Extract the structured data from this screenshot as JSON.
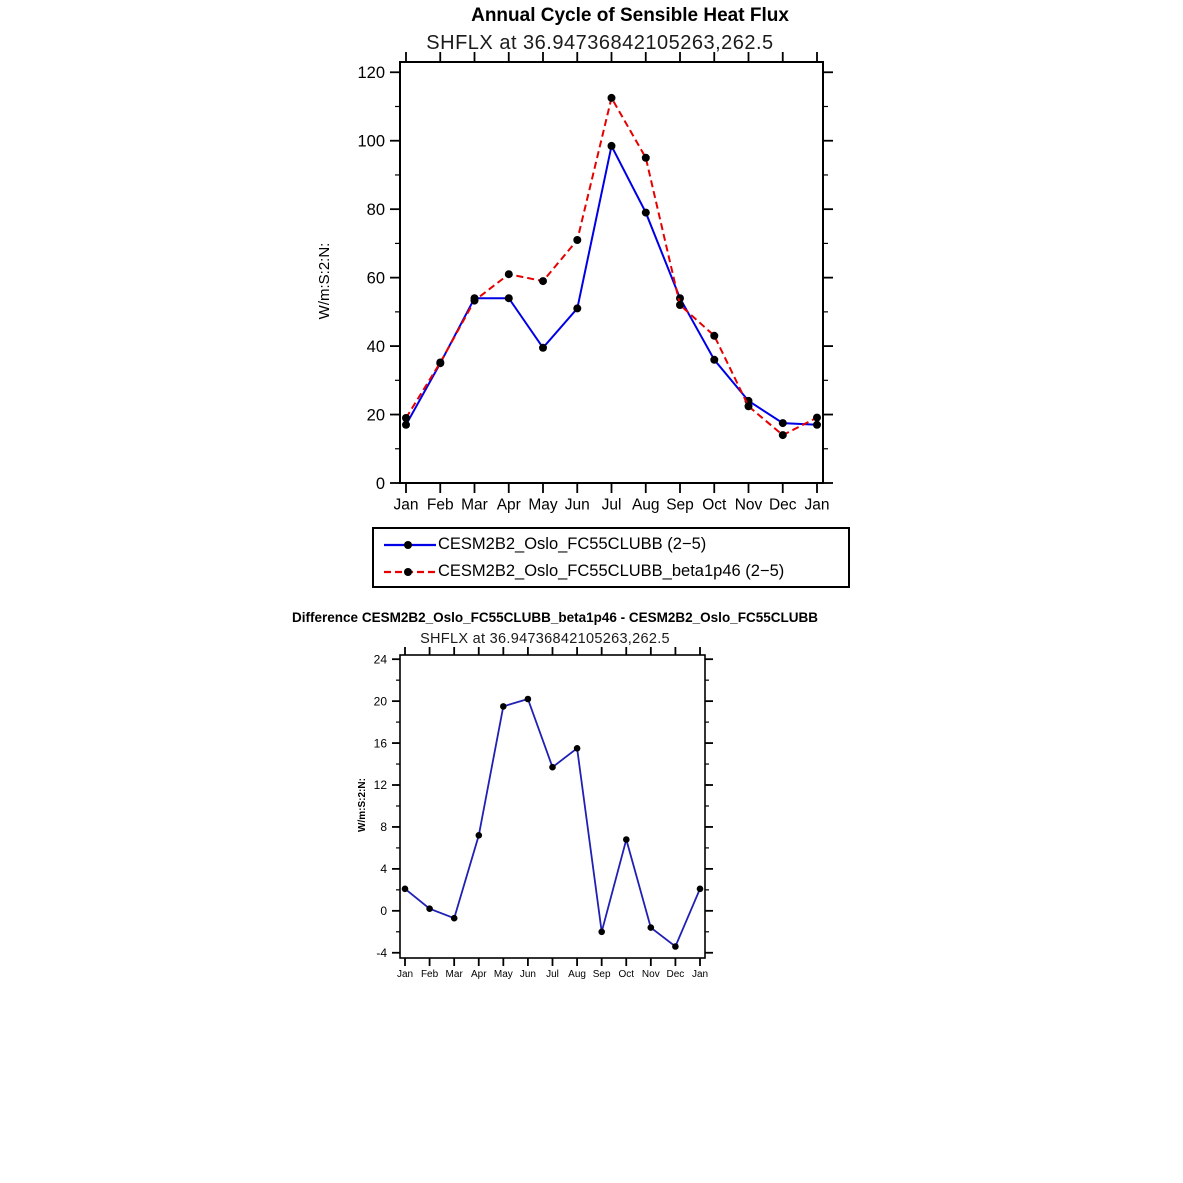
{
  "page": {
    "background": "#ffffff"
  },
  "chart_data": [
    {
      "type": "line",
      "title": "Annual Cycle of Sensible Heat Flux",
      "subtitle": "SHFLX at 36.94736842105263,262.5",
      "ylabel": "W/m:S:2:N:",
      "xlabel": "",
      "grid": false,
      "legend_position": "below",
      "categories": [
        "Jan",
        "Feb",
        "Mar",
        "Apr",
        "May",
        "Jun",
        "Jul",
        "Aug",
        "Sep",
        "Oct",
        "Nov",
        "Dec",
        "Jan"
      ],
      "ylim": [
        0,
        123
      ],
      "yticks": [
        0,
        20,
        40,
        60,
        80,
        100,
        120
      ],
      "yminor_step": 10,
      "series": [
        {
          "name": "CESM2B2_Oslo_FC55CLUBB (2−5)",
          "style": "solid",
          "color": "#0000e6",
          "marker_color": "#000000",
          "values": [
            17,
            35,
            54,
            54,
            39.5,
            51,
            98.5,
            79,
            54,
            36,
            24,
            17.5,
            17
          ]
        },
        {
          "name": "CESM2B2_Oslo_FC55CLUBB_beta1p46 (2−5)",
          "style": "dashed",
          "color": "#e60000",
          "marker_color": "#000000",
          "values": [
            19,
            35.2,
            53.3,
            61,
            59,
            71,
            112.5,
            95,
            52,
            43,
            22.4,
            14,
            19.1
          ]
        }
      ]
    },
    {
      "type": "line",
      "title": "Difference CESM2B2_Oslo_FC55CLUBB_beta1p46 - CESM2B2_Oslo_FC55CLUBB",
      "subtitle": "SHFLX at 36.94736842105263,262.5",
      "ylabel": "W/m:S:2:N:",
      "xlabel": "",
      "grid": false,
      "legend_position": "none",
      "categories": [
        "Jan",
        "Feb",
        "Mar",
        "Apr",
        "May",
        "Jun",
        "Jul",
        "Aug",
        "Sep",
        "Oct",
        "Nov",
        "Dec",
        "Jan"
      ],
      "ylim": [
        -4.5,
        24.4
      ],
      "yticks": [
        -4,
        0,
        4,
        8,
        12,
        16,
        20,
        24
      ],
      "yminor_step": 2,
      "series": [
        {
          "style": "solid",
          "color": "#2020b4",
          "marker_color": "#000000",
          "values": [
            2.1,
            0.2,
            -0.7,
            7.2,
            19.5,
            20.2,
            13.7,
            15.5,
            -2.0,
            6.8,
            -1.6,
            -3.4,
            2.1
          ]
        }
      ]
    }
  ]
}
